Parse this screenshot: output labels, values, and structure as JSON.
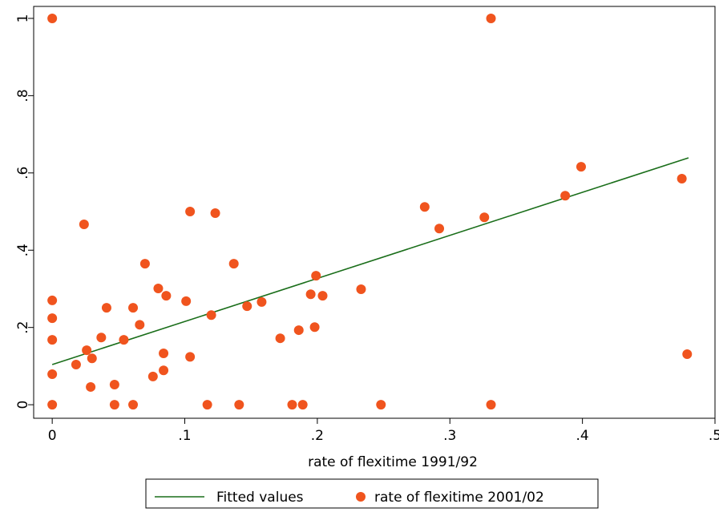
{
  "chart_data": {
    "type": "scatter",
    "xlabel": "rate of flexitime 1991/92",
    "xlim": [
      -0.014,
      0.5
    ],
    "ylim": [
      -0.035,
      1.031
    ],
    "xticks": [
      0,
      {
        "value": 0.1,
        "label": ".1"
      },
      {
        "value": 0.2,
        "label": ".2"
      },
      {
        "value": 0.3,
        "label": ".3"
      },
      {
        "value": 0.4,
        "label": ".4"
      },
      {
        "value": 0.5,
        "label": ".5"
      }
    ],
    "yticks": [
      0,
      {
        "value": 0.2,
        "label": ".2"
      },
      {
        "value": 0.4,
        "label": ".4"
      },
      {
        "value": 0.6,
        "label": ".6"
      },
      {
        "value": 0.8,
        "label": ".8"
      },
      1
    ],
    "series": [
      {
        "name": "Fitted values",
        "type": "line",
        "color": "#1a6e1a",
        "x": [
          0,
          0.48
        ],
        "values": [
          0.104,
          0.639
        ]
      },
      {
        "name": "rate of flexitime 2001/02",
        "type": "scatter",
        "color": "#f0541e",
        "x": [
          0,
          0.331,
          0,
          0,
          0,
          0,
          0,
          0.018,
          0.024,
          0.026,
          0.03,
          0.029,
          0.037,
          0.041,
          0.047,
          0.047,
          0.054,
          0.061,
          0.061,
          0.066,
          0.07,
          0.076,
          0.08,
          0.084,
          0.084,
          0.086,
          0.101,
          0.104,
          0.104,
          0.117,
          0.12,
          0.123,
          0.137,
          0.141,
          0.147,
          0.158,
          0.172,
          0.181,
          0.186,
          0.189,
          0.195,
          0.199,
          0.198,
          0.204,
          0.233,
          0.248,
          0.281,
          0.292,
          0.326,
          0.331,
          0.387,
          0.399,
          0.475,
          0.479
        ],
        "values": [
          1,
          1,
          0.27,
          0.224,
          0.168,
          0.079,
          0,
          0.104,
          0.467,
          0.141,
          0.12,
          0.046,
          0.174,
          0.251,
          0.052,
          0,
          0.168,
          0.251,
          0,
          0.207,
          0.365,
          0.073,
          0.301,
          0.089,
          0.133,
          0.282,
          0.268,
          0.5,
          0.124,
          0,
          0.232,
          0.496,
          0.365,
          0,
          0.255,
          0.266,
          0.172,
          0,
          0.193,
          0,
          0.286,
          0.334,
          0.201,
          0.282,
          0.299,
          0,
          0.512,
          0.456,
          0.485,
          0,
          0.541,
          0.616,
          0.585,
          0.131
        ]
      }
    ]
  }
}
